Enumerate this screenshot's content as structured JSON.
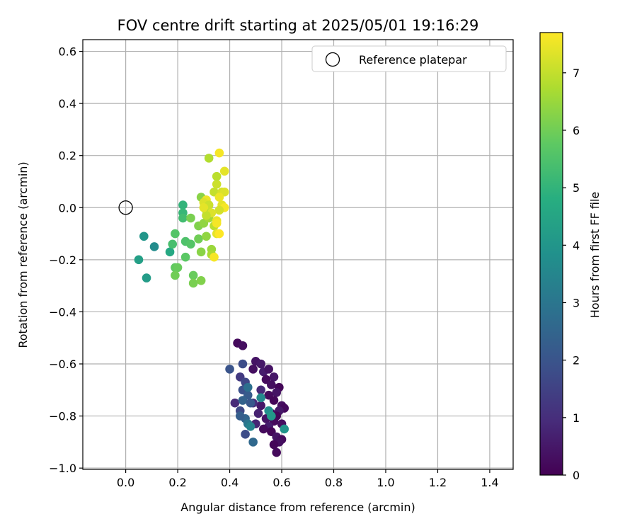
{
  "chart_data": {
    "type": "scatter",
    "title": "FOV centre drift starting at 2025/05/01 19:16:29",
    "xlabel": "Angular distance from reference (arcmin)",
    "ylabel": "Rotation from reference (arcmin)",
    "xlim": [
      -0.165,
      1.49
    ],
    "ylim": [
      -1.005,
      0.645
    ],
    "xticks": [
      0.0,
      0.2,
      0.4,
      0.6,
      0.8,
      1.0,
      1.2,
      1.4
    ],
    "xtick_labels": [
      "0.0",
      "0.2",
      "0.4",
      "0.6",
      "0.8",
      "1.0",
      "1.2",
      "1.4"
    ],
    "yticks": [
      0.6,
      0.4,
      0.2,
      0.0,
      -0.2,
      -0.4,
      -0.6,
      -0.8,
      -1.0
    ],
    "ytick_labels": [
      "0.6",
      "0.4",
      "0.2",
      "0.0",
      "−0.2",
      "−0.4",
      "−0.6",
      "−0.8",
      "−1.0"
    ],
    "grid": true,
    "legend": {
      "placement": "upper-right",
      "entries": [
        {
          "label": "Reference platepar",
          "marker": "open-circle"
        }
      ]
    },
    "reference_point": {
      "x": 0.0,
      "y": 0.0
    },
    "colorbar": {
      "label": "Hours from first FF file",
      "colormap": "viridis",
      "range": [
        0,
        7.7
      ],
      "ticks": [
        0,
        1,
        2,
        3,
        4,
        5,
        6,
        7
      ],
      "tick_labels": [
        "0",
        "1",
        "2",
        "3",
        "4",
        "5",
        "6",
        "7"
      ]
    },
    "points": [
      {
        "x": 0.43,
        "y": -0.52,
        "t": 0.2
      },
      {
        "x": 0.45,
        "y": -0.53,
        "t": 0.3
      },
      {
        "x": 0.5,
        "y": -0.59,
        "t": 0.4
      },
      {
        "x": 0.52,
        "y": -0.6,
        "t": 0.5
      },
      {
        "x": 0.49,
        "y": -0.62,
        "t": 0.3
      },
      {
        "x": 0.53,
        "y": -0.63,
        "t": 0.6
      },
      {
        "x": 0.55,
        "y": -0.62,
        "t": 0.4
      },
      {
        "x": 0.57,
        "y": -0.65,
        "t": 0.5
      },
      {
        "x": 0.54,
        "y": -0.66,
        "t": 0.2
      },
      {
        "x": 0.56,
        "y": -0.68,
        "t": 0.3
      },
      {
        "x": 0.59,
        "y": -0.69,
        "t": 0.1
      },
      {
        "x": 0.58,
        "y": -0.71,
        "t": 0.4
      },
      {
        "x": 0.55,
        "y": -0.72,
        "t": 0.2
      },
      {
        "x": 0.57,
        "y": -0.74,
        "t": 0.1
      },
      {
        "x": 0.6,
        "y": -0.76,
        "t": 0.3
      },
      {
        "x": 0.61,
        "y": -0.77,
        "t": 0.2
      },
      {
        "x": 0.59,
        "y": -0.78,
        "t": 0.5
      },
      {
        "x": 0.56,
        "y": -0.79,
        "t": 0.3
      },
      {
        "x": 0.58,
        "y": -0.8,
        "t": 0.1
      },
      {
        "x": 0.54,
        "y": -0.81,
        "t": 0.4
      },
      {
        "x": 0.57,
        "y": -0.82,
        "t": 0.2
      },
      {
        "x": 0.6,
        "y": -0.83,
        "t": 0.3
      },
      {
        "x": 0.55,
        "y": -0.84,
        "t": 0.6
      },
      {
        "x": 0.53,
        "y": -0.85,
        "t": 0.2
      },
      {
        "x": 0.56,
        "y": -0.86,
        "t": 0.1
      },
      {
        "x": 0.58,
        "y": -0.88,
        "t": 0.4
      },
      {
        "x": 0.6,
        "y": -0.89,
        "t": 0.2
      },
      {
        "x": 0.59,
        "y": -0.9,
        "t": 0.3
      },
      {
        "x": 0.57,
        "y": -0.91,
        "t": 0.1
      },
      {
        "x": 0.58,
        "y": -0.94,
        "t": 0.2
      },
      {
        "x": 0.52,
        "y": -0.76,
        "t": 0.5
      },
      {
        "x": 0.51,
        "y": -0.79,
        "t": 0.7
      },
      {
        "x": 0.5,
        "y": -0.83,
        "t": 0.8
      },
      {
        "x": 0.52,
        "y": -0.7,
        "t": 0.9
      },
      {
        "x": 0.49,
        "y": -0.75,
        "t": 1.0
      },
      {
        "x": 0.42,
        "y": -0.75,
        "t": 0.9
      },
      {
        "x": 0.44,
        "y": -0.65,
        "t": 1.3
      },
      {
        "x": 0.45,
        "y": -0.6,
        "t": 1.8
      },
      {
        "x": 0.4,
        "y": -0.62,
        "t": 2.0
      },
      {
        "x": 0.46,
        "y": -0.67,
        "t": 1.6
      },
      {
        "x": 0.45,
        "y": -0.7,
        "t": 1.9
      },
      {
        "x": 0.47,
        "y": -0.72,
        "t": 2.2
      },
      {
        "x": 0.45,
        "y": -0.74,
        "t": 2.4
      },
      {
        "x": 0.48,
        "y": -0.75,
        "t": 2.1
      },
      {
        "x": 0.44,
        "y": -0.78,
        "t": 1.7
      },
      {
        "x": 0.46,
        "y": -0.81,
        "t": 2.5
      },
      {
        "x": 0.44,
        "y": -0.8,
        "t": 2.3
      },
      {
        "x": 0.47,
        "y": -0.83,
        "t": 3.0
      },
      {
        "x": 0.46,
        "y": -0.87,
        "t": 1.8
      },
      {
        "x": 0.49,
        "y": -0.9,
        "t": 2.6
      },
      {
        "x": 0.48,
        "y": -0.84,
        "t": 3.4
      },
      {
        "x": 0.55,
        "y": -0.78,
        "t": 3.8
      },
      {
        "x": 0.56,
        "y": -0.8,
        "t": 4.1
      },
      {
        "x": 0.52,
        "y": -0.73,
        "t": 3.6
      },
      {
        "x": 0.61,
        "y": -0.85,
        "t": 3.9
      },
      {
        "x": 0.47,
        "y": -0.69,
        "t": 2.8
      },
      {
        "x": 0.07,
        "y": -0.11,
        "t": 4.0
      },
      {
        "x": 0.05,
        "y": -0.2,
        "t": 4.3
      },
      {
        "x": 0.11,
        "y": -0.15,
        "t": 3.7
      },
      {
        "x": 0.08,
        "y": -0.27,
        "t": 4.2
      },
      {
        "x": 0.17,
        "y": -0.17,
        "t": 4.6
      },
      {
        "x": 0.22,
        "y": 0.01,
        "t": 5.0
      },
      {
        "x": 0.22,
        "y": -0.02,
        "t": 5.1
      },
      {
        "x": 0.22,
        "y": -0.04,
        "t": 5.3
      },
      {
        "x": 0.18,
        "y": -0.14,
        "t": 5.4
      },
      {
        "x": 0.23,
        "y": -0.13,
        "t": 5.5
      },
      {
        "x": 0.25,
        "y": -0.14,
        "t": 5.6
      },
      {
        "x": 0.23,
        "y": -0.19,
        "t": 5.7
      },
      {
        "x": 0.19,
        "y": -0.1,
        "t": 5.6
      },
      {
        "x": 0.19,
        "y": -0.23,
        "t": 5.8
      },
      {
        "x": 0.2,
        "y": -0.23,
        "t": 5.9
      },
      {
        "x": 0.19,
        "y": -0.26,
        "t": 6.0
      },
      {
        "x": 0.26,
        "y": -0.26,
        "t": 5.9
      },
      {
        "x": 0.26,
        "y": -0.29,
        "t": 6.1
      },
      {
        "x": 0.29,
        "y": -0.28,
        "t": 6.2
      },
      {
        "x": 0.25,
        "y": -0.04,
        "t": 6.1
      },
      {
        "x": 0.28,
        "y": -0.12,
        "t": 6.0
      },
      {
        "x": 0.29,
        "y": -0.17,
        "t": 6.3
      },
      {
        "x": 0.28,
        "y": -0.07,
        "t": 6.2
      },
      {
        "x": 0.3,
        "y": -0.06,
        "t": 6.4
      },
      {
        "x": 0.29,
        "y": 0.04,
        "t": 6.3
      },
      {
        "x": 0.31,
        "y": -0.01,
        "t": 6.5
      },
      {
        "x": 0.31,
        "y": -0.11,
        "t": 6.4
      },
      {
        "x": 0.33,
        "y": -0.16,
        "t": 6.5
      },
      {
        "x": 0.32,
        "y": -0.04,
        "t": 6.6
      },
      {
        "x": 0.33,
        "y": -0.18,
        "t": 6.7
      },
      {
        "x": 0.32,
        "y": 0.19,
        "t": 6.8
      },
      {
        "x": 0.34,
        "y": -0.07,
        "t": 6.9
      },
      {
        "x": 0.34,
        "y": 0.06,
        "t": 7.0
      },
      {
        "x": 0.35,
        "y": 0.09,
        "t": 7.1
      },
      {
        "x": 0.35,
        "y": 0.12,
        "t": 6.9
      },
      {
        "x": 0.36,
        "y": 0.21,
        "t": 7.6
      },
      {
        "x": 0.38,
        "y": 0.14,
        "t": 7.4
      },
      {
        "x": 0.37,
        "y": 0.06,
        "t": 7.2
      },
      {
        "x": 0.38,
        "y": 0.06,
        "t": 7.3
      },
      {
        "x": 0.36,
        "y": 0.04,
        "t": 7.5
      },
      {
        "x": 0.37,
        "y": 0.01,
        "t": 7.4
      },
      {
        "x": 0.38,
        "y": 0.0,
        "t": 7.6
      },
      {
        "x": 0.36,
        "y": -0.01,
        "t": 7.2
      },
      {
        "x": 0.35,
        "y": -0.05,
        "t": 7.5
      },
      {
        "x": 0.35,
        "y": -0.06,
        "t": 7.6
      },
      {
        "x": 0.35,
        "y": -0.1,
        "t": 7.4
      },
      {
        "x": 0.36,
        "y": -0.1,
        "t": 7.7
      },
      {
        "x": 0.34,
        "y": -0.19,
        "t": 7.6
      },
      {
        "x": 0.31,
        "y": 0.03,
        "t": 7.5
      },
      {
        "x": 0.3,
        "y": 0.02,
        "t": 7.3
      },
      {
        "x": 0.32,
        "y": 0.01,
        "t": 7.1
      },
      {
        "x": 0.33,
        "y": -0.02,
        "t": 7.3
      },
      {
        "x": 0.31,
        "y": -0.03,
        "t": 7.0
      },
      {
        "x": 0.3,
        "y": 0.0,
        "t": 7.4
      }
    ]
  }
}
